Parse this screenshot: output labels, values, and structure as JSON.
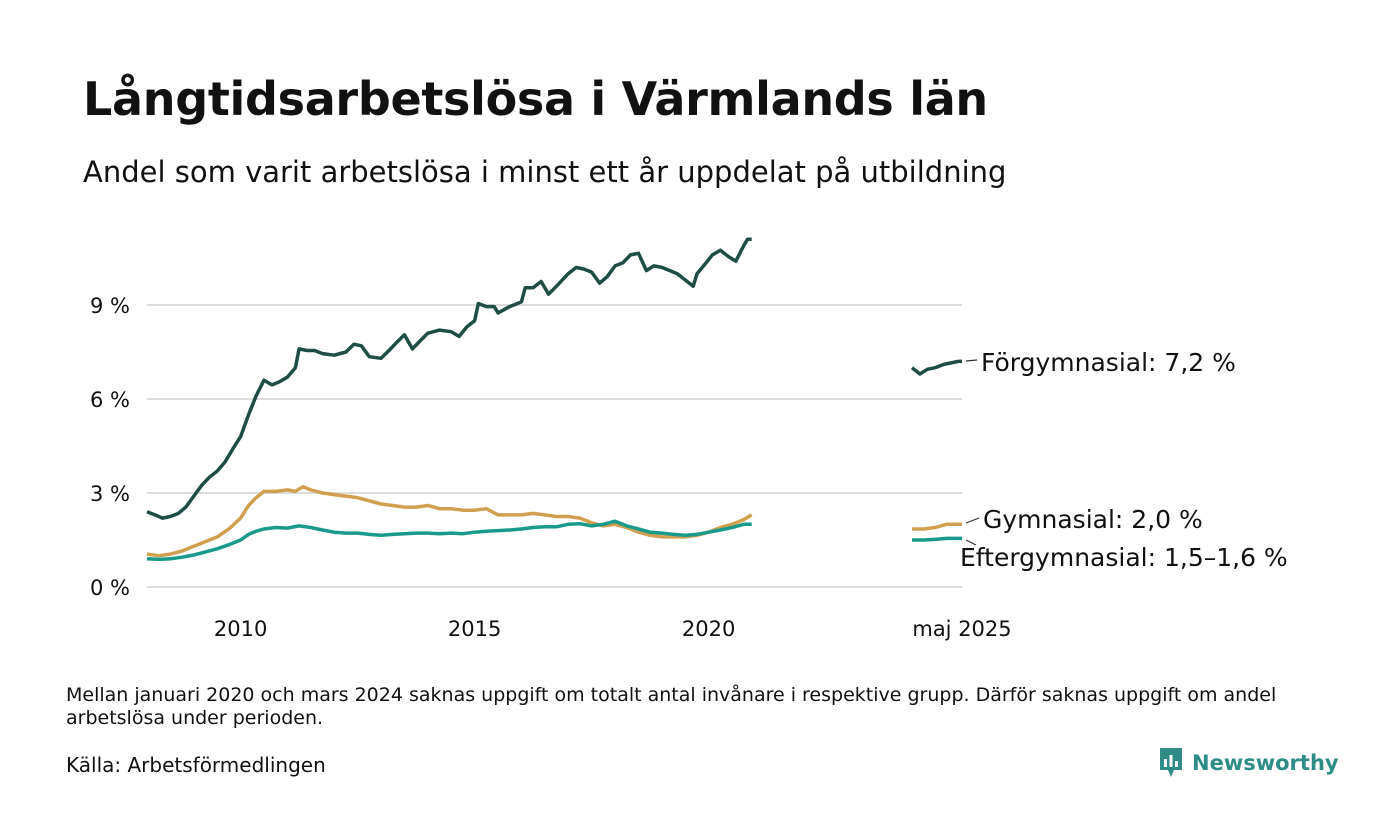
{
  "title": "Långtidsarbetslösa i Värmlands län",
  "subtitle": "Andel som varit arbetslösa i minst ett år uppdelat på utbildning",
  "footnote": "Mellan januari 2020 och mars 2024 saknas uppgift om totalt antal invånare i respektive grupp. Därför saknas uppgift om andel arbetslösa under perioden.",
  "source": "Källa: Arbetsförmedlingen",
  "brand": {
    "name": "Newsworthy",
    "icon": "newsworthy-logo-icon",
    "color": "#2e8b86"
  },
  "colors": {
    "Förgymnasial": "#1f4d45",
    "Gymnasial": "#d1a04f",
    "Eftergymnasial": "#1a9a8a",
    "grid": "#dddddd"
  },
  "chart_data": {
    "type": "line",
    "title": "Långtidsarbetslösa i Värmlands län",
    "subtitle": "Andel som varit arbetslösa i minst ett år uppdelat på utbildning",
    "xlabel": "",
    "ylabel": "",
    "ylim": [
      0,
      12
    ],
    "y_ticks": [
      {
        "value": 0,
        "label": "0 %"
      },
      {
        "value": 3,
        "label": "3 %"
      },
      {
        "value": 6,
        "label": "6 %"
      },
      {
        "value": 9,
        "label": "9 %"
      }
    ],
    "x_ticks": [
      {
        "value": 2010,
        "label": "2010"
      },
      {
        "value": 2015,
        "label": "2015"
      },
      {
        "value": 2020,
        "label": "2020"
      }
    ],
    "x_range": [
      2008,
      2020.99
    ],
    "recent_label": "maj 2025",
    "recent_range": [
      2024.25,
      2025.33
    ],
    "grid": true,
    "series": [
      {
        "name": "Förgymnasial",
        "end_label": "Förgymnasial: 7,2 %",
        "points": [
          [
            2008.0,
            2.4
          ],
          [
            2008.17,
            2.3
          ],
          [
            2008.33,
            2.2
          ],
          [
            2008.5,
            2.25
          ],
          [
            2008.67,
            2.35
          ],
          [
            2008.83,
            2.55
          ],
          [
            2009.0,
            2.9
          ],
          [
            2009.17,
            3.25
          ],
          [
            2009.33,
            3.5
          ],
          [
            2009.5,
            3.7
          ],
          [
            2009.67,
            4.0
          ],
          [
            2009.83,
            4.4
          ],
          [
            2010.0,
            4.8
          ],
          [
            2010.17,
            5.5
          ],
          [
            2010.33,
            6.1
          ],
          [
            2010.5,
            6.6
          ],
          [
            2010.67,
            6.45
          ],
          [
            2010.83,
            6.55
          ],
          [
            2011.0,
            6.7
          ],
          [
            2011.17,
            7.0
          ],
          [
            2011.25,
            7.6
          ],
          [
            2011.42,
            7.55
          ],
          [
            2011.58,
            7.55
          ],
          [
            2011.75,
            7.45
          ],
          [
            2012.0,
            7.4
          ],
          [
            2012.25,
            7.5
          ],
          [
            2012.42,
            7.75
          ],
          [
            2012.58,
            7.7
          ],
          [
            2012.75,
            7.35
          ],
          [
            2013.0,
            7.3
          ],
          [
            2013.17,
            7.55
          ],
          [
            2013.33,
            7.8
          ],
          [
            2013.5,
            8.05
          ],
          [
            2013.67,
            7.6
          ],
          [
            2013.83,
            7.85
          ],
          [
            2014.0,
            8.1
          ],
          [
            2014.25,
            8.2
          ],
          [
            2014.5,
            8.15
          ],
          [
            2014.67,
            8.0
          ],
          [
            2014.83,
            8.3
          ],
          [
            2015.0,
            8.5
          ],
          [
            2015.08,
            9.05
          ],
          [
            2015.25,
            8.95
          ],
          [
            2015.42,
            8.95
          ],
          [
            2015.5,
            8.75
          ],
          [
            2015.75,
            8.95
          ],
          [
            2016.0,
            9.1
          ],
          [
            2016.08,
            9.55
          ],
          [
            2016.25,
            9.55
          ],
          [
            2016.42,
            9.75
          ],
          [
            2016.58,
            9.35
          ],
          [
            2016.75,
            9.6
          ],
          [
            2017.0,
            10.0
          ],
          [
            2017.17,
            10.2
          ],
          [
            2017.33,
            10.15
          ],
          [
            2017.5,
            10.05
          ],
          [
            2017.67,
            9.7
          ],
          [
            2017.83,
            9.9
          ],
          [
            2018.0,
            10.25
          ],
          [
            2018.17,
            10.35
          ],
          [
            2018.33,
            10.6
          ],
          [
            2018.5,
            10.65
          ],
          [
            2018.67,
            10.1
          ],
          [
            2018.83,
            10.25
          ],
          [
            2019.0,
            10.2
          ],
          [
            2019.17,
            10.1
          ],
          [
            2019.33,
            10.0
          ],
          [
            2019.5,
            9.8
          ],
          [
            2019.67,
            9.6
          ],
          [
            2019.75,
            10.0
          ],
          [
            2019.92,
            10.3
          ],
          [
            2020.08,
            10.6
          ],
          [
            2020.25,
            10.75
          ],
          [
            2020.42,
            10.55
          ],
          [
            2020.58,
            10.4
          ],
          [
            2020.75,
            10.9
          ],
          [
            2020.83,
            11.1
          ],
          [
            2020.92,
            11.1
          ]
        ],
        "recent_points": [
          [
            2024.25,
            7.0
          ],
          [
            2024.42,
            6.8
          ],
          [
            2024.58,
            6.95
          ],
          [
            2024.75,
            7.0
          ],
          [
            2024.92,
            7.1
          ],
          [
            2025.08,
            7.15
          ],
          [
            2025.25,
            7.2
          ],
          [
            2025.33,
            7.2
          ]
        ]
      },
      {
        "name": "Gymnasial",
        "end_label": "Gymnasial: 2,0 %",
        "points": [
          [
            2008.0,
            1.05
          ],
          [
            2008.25,
            1.0
          ],
          [
            2008.5,
            1.05
          ],
          [
            2008.75,
            1.15
          ],
          [
            2009.0,
            1.3
          ],
          [
            2009.25,
            1.45
          ],
          [
            2009.5,
            1.6
          ],
          [
            2009.75,
            1.85
          ],
          [
            2010.0,
            2.2
          ],
          [
            2010.17,
            2.6
          ],
          [
            2010.33,
            2.85
          ],
          [
            2010.5,
            3.05
          ],
          [
            2010.75,
            3.05
          ],
          [
            2011.0,
            3.1
          ],
          [
            2011.17,
            3.05
          ],
          [
            2011.33,
            3.2
          ],
          [
            2011.5,
            3.1
          ],
          [
            2011.75,
            3.0
          ],
          [
            2012.0,
            2.95
          ],
          [
            2012.25,
            2.9
          ],
          [
            2012.5,
            2.85
          ],
          [
            2012.75,
            2.75
          ],
          [
            2013.0,
            2.65
          ],
          [
            2013.25,
            2.6
          ],
          [
            2013.5,
            2.55
          ],
          [
            2013.75,
            2.55
          ],
          [
            2014.0,
            2.6
          ],
          [
            2014.25,
            2.5
          ],
          [
            2014.5,
            2.5
          ],
          [
            2014.75,
            2.45
          ],
          [
            2015.0,
            2.45
          ],
          [
            2015.25,
            2.5
          ],
          [
            2015.5,
            2.3
          ],
          [
            2015.75,
            2.3
          ],
          [
            2016.0,
            2.3
          ],
          [
            2016.25,
            2.35
          ],
          [
            2016.5,
            2.3
          ],
          [
            2016.75,
            2.25
          ],
          [
            2017.0,
            2.25
          ],
          [
            2017.25,
            2.2
          ],
          [
            2017.5,
            2.05
          ],
          [
            2017.75,
            1.95
          ],
          [
            2018.0,
            2.0
          ],
          [
            2018.25,
            1.9
          ],
          [
            2018.5,
            1.75
          ],
          [
            2018.75,
            1.65
          ],
          [
            2019.0,
            1.6
          ],
          [
            2019.25,
            1.6
          ],
          [
            2019.5,
            1.6
          ],
          [
            2019.75,
            1.65
          ],
          [
            2020.0,
            1.75
          ],
          [
            2020.25,
            1.9
          ],
          [
            2020.5,
            2.0
          ],
          [
            2020.75,
            2.15
          ],
          [
            2020.92,
            2.3
          ]
        ],
        "recent_points": [
          [
            2024.25,
            1.85
          ],
          [
            2024.5,
            1.85
          ],
          [
            2024.75,
            1.9
          ],
          [
            2025.0,
            2.0
          ],
          [
            2025.33,
            2.0
          ]
        ]
      },
      {
        "name": "Eftergymnasial",
        "end_label": "Eftergymnasial: 1,5–1,6 %",
        "points": [
          [
            2008.0,
            0.9
          ],
          [
            2008.25,
            0.88
          ],
          [
            2008.5,
            0.9
          ],
          [
            2008.75,
            0.95
          ],
          [
            2009.0,
            1.02
          ],
          [
            2009.25,
            1.12
          ],
          [
            2009.5,
            1.22
          ],
          [
            2009.75,
            1.35
          ],
          [
            2010.0,
            1.5
          ],
          [
            2010.17,
            1.68
          ],
          [
            2010.33,
            1.78
          ],
          [
            2010.5,
            1.85
          ],
          [
            2010.75,
            1.9
          ],
          [
            2011.0,
            1.88
          ],
          [
            2011.25,
            1.95
          ],
          [
            2011.5,
            1.9
          ],
          [
            2011.75,
            1.82
          ],
          [
            2012.0,
            1.75
          ],
          [
            2012.25,
            1.72
          ],
          [
            2012.5,
            1.72
          ],
          [
            2012.75,
            1.68
          ],
          [
            2013.0,
            1.65
          ],
          [
            2013.25,
            1.68
          ],
          [
            2013.5,
            1.7
          ],
          [
            2013.75,
            1.72
          ],
          [
            2014.0,
            1.72
          ],
          [
            2014.25,
            1.7
          ],
          [
            2014.5,
            1.72
          ],
          [
            2014.75,
            1.7
          ],
          [
            2015.0,
            1.75
          ],
          [
            2015.25,
            1.78
          ],
          [
            2015.5,
            1.8
          ],
          [
            2015.75,
            1.82
          ],
          [
            2016.0,
            1.85
          ],
          [
            2016.25,
            1.9
          ],
          [
            2016.5,
            1.92
          ],
          [
            2016.75,
            1.92
          ],
          [
            2017.0,
            2.0
          ],
          [
            2017.25,
            2.02
          ],
          [
            2017.5,
            1.95
          ],
          [
            2017.75,
            2.0
          ],
          [
            2018.0,
            2.1
          ],
          [
            2018.25,
            1.95
          ],
          [
            2018.5,
            1.85
          ],
          [
            2018.75,
            1.75
          ],
          [
            2019.0,
            1.72
          ],
          [
            2019.25,
            1.68
          ],
          [
            2019.5,
            1.65
          ],
          [
            2019.75,
            1.68
          ],
          [
            2020.0,
            1.75
          ],
          [
            2020.25,
            1.82
          ],
          [
            2020.5,
            1.9
          ],
          [
            2020.75,
            2.0
          ],
          [
            2020.92,
            2.0
          ]
        ],
        "recent_points": [
          [
            2024.25,
            1.5
          ],
          [
            2024.5,
            1.5
          ],
          [
            2024.75,
            1.52
          ],
          [
            2025.0,
            1.55
          ],
          [
            2025.33,
            1.55
          ]
        ]
      }
    ]
  }
}
